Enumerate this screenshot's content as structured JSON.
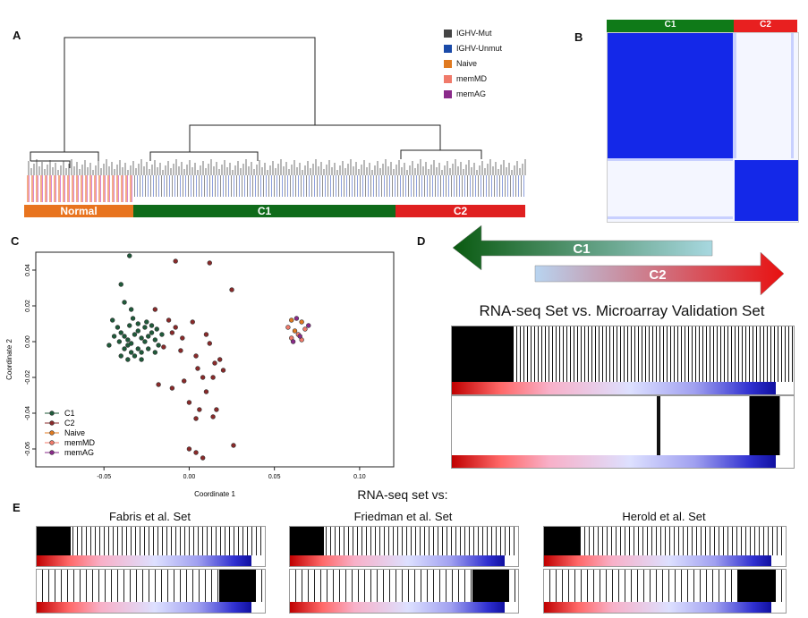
{
  "panels": {
    "a": "A",
    "b": "B",
    "c": "C",
    "d": "D",
    "e": "E"
  },
  "panel_a": {
    "legend": [
      {
        "label": "IGHV-Mut",
        "color": "#444444"
      },
      {
        "label": "IGHV-Unmut",
        "color": "#1a4aa8"
      },
      {
        "label": "Naive",
        "color": "#e07a20"
      },
      {
        "label": "memMD",
        "color": "#f07a6a"
      },
      {
        "label": "memAG",
        "color": "#8a2a8a"
      }
    ],
    "groups": [
      {
        "label": "Normal",
        "color": "#e8741f"
      },
      {
        "label": "C1",
        "color": "#0f6b1a"
      },
      {
        "label": "C2",
        "color": "#e02020"
      }
    ]
  },
  "panel_b": {
    "c1_label": "C1",
    "c1_color": "#0f7a18",
    "c2_label": "C2",
    "c2_color": "#e82020",
    "block_color": "#1428e8"
  },
  "chart_data": {
    "type": "scatter",
    "xlabel": "Coordinate 1",
    "ylabel": "Coordinate 2",
    "xlim": [
      -0.09,
      0.12
    ],
    "ylim": [
      -0.07,
      0.05
    ],
    "xticks": [
      "-0.05",
      "0.00",
      "0.05",
      "0.10"
    ],
    "yticks": [
      "-0.06",
      "-0.04",
      "-0.02",
      "0.00",
      "0.02",
      "0.04"
    ],
    "legend_position": "bottom-left",
    "series": [
      {
        "name": "C1",
        "color": "#1f5a3a",
        "points": [
          [
            -0.035,
            0.048
          ],
          [
            -0.04,
            0.032
          ],
          [
            -0.038,
            0.022
          ],
          [
            -0.034,
            0.018
          ],
          [
            -0.045,
            0.012
          ],
          [
            -0.042,
            0.008
          ],
          [
            -0.04,
            0.005
          ],
          [
            -0.038,
            0.003
          ],
          [
            -0.036,
            0.001
          ],
          [
            -0.034,
            -0.001
          ],
          [
            -0.032,
            0.004
          ],
          [
            -0.03,
            0.006
          ],
          [
            -0.028,
            0.002
          ],
          [
            -0.026,
            0.0
          ],
          [
            -0.024,
            0.003
          ],
          [
            -0.022,
            0.005
          ],
          [
            -0.02,
            0.001
          ],
          [
            -0.018,
            -0.002
          ],
          [
            -0.03,
            -0.004
          ],
          [
            -0.034,
            -0.006
          ],
          [
            -0.038,
            -0.004
          ],
          [
            -0.04,
            -0.008
          ],
          [
            -0.036,
            -0.01
          ],
          [
            -0.032,
            -0.008
          ],
          [
            -0.028,
            -0.006
          ],
          [
            -0.024,
            -0.004
          ],
          [
            -0.02,
            -0.006
          ],
          [
            -0.026,
            0.008
          ],
          [
            -0.022,
            0.009
          ],
          [
            -0.03,
            0.01
          ],
          [
            -0.035,
            0.009
          ],
          [
            -0.044,
            0.003
          ],
          [
            -0.047,
            -0.002
          ],
          [
            -0.028,
            -0.01
          ],
          [
            -0.025,
            0.011
          ],
          [
            -0.033,
            0.013
          ],
          [
            -0.041,
            0.0
          ],
          [
            -0.016,
            0.004
          ],
          [
            -0.019,
            0.007
          ],
          [
            -0.036,
            -0.002
          ]
        ]
      },
      {
        "name": "C2",
        "color": "#8a2a2a",
        "points": [
          [
            -0.008,
            0.045
          ],
          [
            0.012,
            0.044
          ],
          [
            0.025,
            0.029
          ],
          [
            -0.02,
            0.018
          ],
          [
            -0.012,
            0.012
          ],
          [
            -0.008,
            0.008
          ],
          [
            0.002,
            0.011
          ],
          [
            0.01,
            0.004
          ],
          [
            -0.015,
            -0.003
          ],
          [
            -0.005,
            -0.005
          ],
          [
            0.004,
            -0.008
          ],
          [
            0.012,
            -0.001
          ],
          [
            0.018,
            -0.01
          ],
          [
            0.005,
            -0.015
          ],
          [
            -0.003,
            -0.022
          ],
          [
            0.008,
            -0.02
          ],
          [
            -0.018,
            -0.024
          ],
          [
            0.01,
            -0.028
          ],
          [
            0.014,
            -0.02
          ],
          [
            0.02,
            -0.016
          ],
          [
            -0.01,
            -0.026
          ],
          [
            0.0,
            -0.034
          ],
          [
            0.006,
            -0.038
          ],
          [
            0.016,
            -0.038
          ],
          [
            0.004,
            -0.043
          ],
          [
            0.014,
            -0.042
          ],
          [
            0.026,
            -0.058
          ],
          [
            0.004,
            -0.062
          ],
          [
            0.0,
            -0.06
          ],
          [
            0.008,
            -0.065
          ],
          [
            -0.01,
            0.005
          ],
          [
            -0.004,
            0.002
          ],
          [
            0.015,
            -0.012
          ]
        ]
      },
      {
        "name": "Naive",
        "color": "#e07a20",
        "points": [
          [
            0.06,
            0.012
          ],
          [
            0.066,
            0.011
          ],
          [
            0.062,
            0.006
          ]
        ]
      },
      {
        "name": "memMD",
        "color": "#f07a6a",
        "points": [
          [
            0.058,
            0.008
          ],
          [
            0.064,
            0.004
          ],
          [
            0.068,
            0.007
          ],
          [
            0.06,
            0.002
          ],
          [
            0.066,
            0.001
          ]
        ]
      },
      {
        "name": "memAG",
        "color": "#8a2a8a",
        "points": [
          [
            0.063,
            0.013
          ],
          [
            0.07,
            0.009
          ],
          [
            0.061,
            0.0
          ],
          [
            0.065,
            0.003
          ]
        ]
      }
    ]
  },
  "panel_d": {
    "arrow_c1": "C1",
    "arrow_c2": "C2",
    "title": "RNA-seq Set vs. Microarray Validation Set"
  },
  "panel_e": {
    "title": "RNA-seq set vs:",
    "sets": [
      {
        "label": "Fabris et al. Set"
      },
      {
        "label": "Friedman et al. Set"
      },
      {
        "label": "Herold et al. Set"
      }
    ]
  }
}
